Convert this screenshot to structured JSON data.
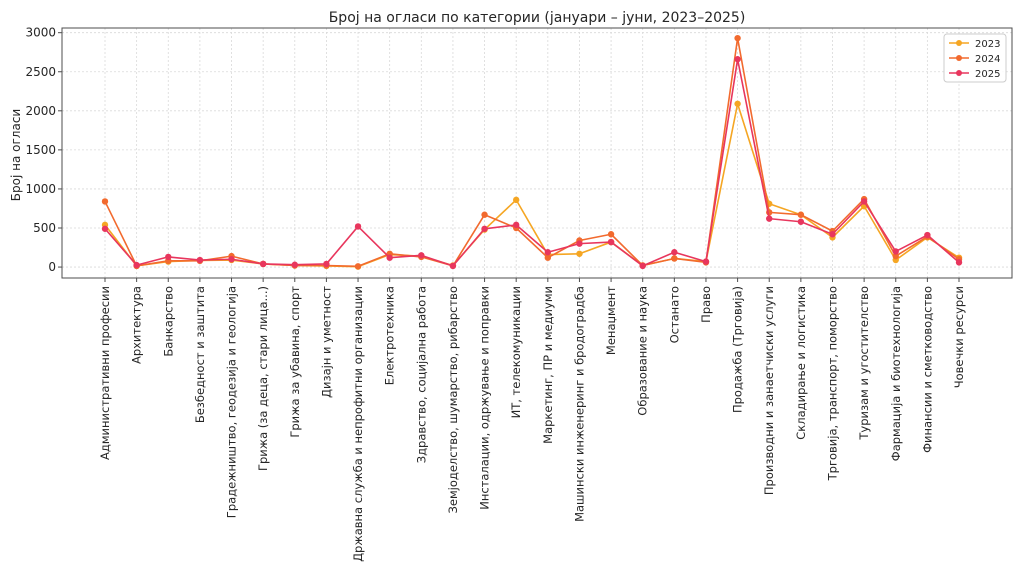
{
  "chart_data": {
    "type": "line",
    "title": "Број на огласи по категории (јануари – јуни, 2023–2025)",
    "xlabel": "",
    "ylabel": "Број на огласи",
    "ylim": [
      -140,
      3060
    ],
    "yticks": [
      0,
      500,
      1000,
      1500,
      2000,
      2500,
      3000
    ],
    "grid": true,
    "legend_position": "top-right",
    "categories": [
      "Административни професии",
      "Архитектура",
      "Банкарство",
      "Безбедност и заштита",
      "Градежништво, геодезија и геологија",
      "Грижа (за деца, стари лица...)",
      "Грижа за убавина, спорт",
      "Дизајн и уметност",
      "Државна служба и непрофитни организации",
      "Електротехника",
      "Здравство, социјална работа",
      "Земјоделство, шумарство, рибарство",
      "Инсталации, одржување и поправки",
      "ИТ, телекомуникации",
      "Маркетинг, ПР и медиуми",
      "Машински инженеринг и бродоградба",
      "Менаџмент",
      "Образование и наука",
      "Останато",
      "Право",
      "Продажба (Трговија)",
      "Производни и занаетчиски услуги",
      "Складирање и логистика",
      "Трговија, транспорт, поморство",
      "Туризам и угостителство",
      "Фармација и биотехнологија",
      "Финансии и сметководство",
      "Човечки ресурси"
    ],
    "series": [
      {
        "name": "2023",
        "color": "#f5a623",
        "values": [
          540,
          15,
          70,
          85,
          90,
          40,
          20,
          15,
          5,
          160,
          140,
          20,
          480,
          860,
          160,
          170,
          320,
          20,
          110,
          70,
          2090,
          810,
          670,
          380,
          780,
          90,
          380,
          120
        ]
      },
      {
        "name": "2024",
        "color": "#f26a2e",
        "values": [
          840,
          15,
          80,
          80,
          140,
          40,
          20,
          20,
          10,
          170,
          130,
          15,
          670,
          500,
          120,
          340,
          420,
          20,
          110,
          60,
          2930,
          700,
          670,
          460,
          870,
          140,
          390,
          100
        ]
      },
      {
        "name": "2025",
        "color": "#e8365d",
        "values": [
          490,
          25,
          130,
          90,
          100,
          40,
          30,
          40,
          520,
          120,
          150,
          15,
          490,
          540,
          190,
          300,
          320,
          15,
          190,
          70,
          2660,
          620,
          580,
          420,
          840,
          200,
          410,
          60
        ]
      }
    ]
  }
}
